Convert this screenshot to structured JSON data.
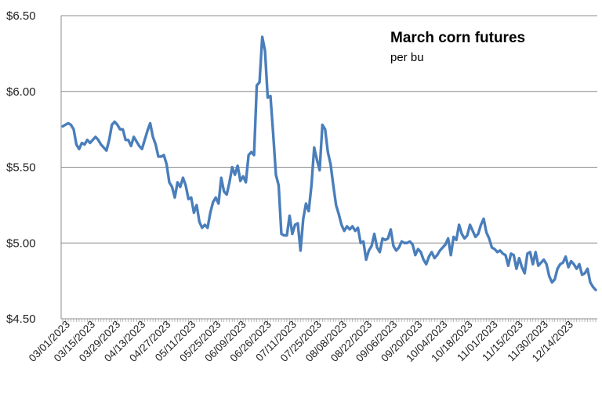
{
  "chart_data": {
    "type": "line",
    "title": "March corn futures",
    "subtitle": "per bu",
    "ylim": [
      4.5,
      6.5
    ],
    "y_ticks": [
      4.5,
      5.0,
      5.5,
      6.0,
      6.5
    ],
    "y_tick_labels": [
      "$4.50",
      "$5.00",
      "$5.50",
      "$6.00",
      "$6.50"
    ],
    "x_tick_labels": [
      "03/01/2023",
      "03/15/2023",
      "03/29/2023",
      "04/13/2023",
      "04/27/2023",
      "05/11/2023",
      "05/25/2023",
      "06/09/2023",
      "06/26/2023",
      "07/11/2023",
      "07/25/2023",
      "08/08/2023",
      "08/22/2023",
      "09/06/2023",
      "09/20/2023",
      "10/04/2023",
      "10/18/2023",
      "11/01/2023",
      "11/15/2023",
      "11/30/2023",
      "12/14/2023"
    ],
    "grid": "horizontal",
    "line_color": "#4a7ebb",
    "series": [
      {
        "values": [
          5.77,
          5.78,
          5.79,
          5.78,
          5.75,
          5.65,
          5.62,
          5.66,
          5.65,
          5.68,
          5.66,
          5.68,
          5.7,
          5.68,
          5.65,
          5.63,
          5.61,
          5.68,
          5.78,
          5.8,
          5.78,
          5.75,
          5.75,
          5.68,
          5.68,
          5.64,
          5.7,
          5.67,
          5.64,
          5.62,
          5.68,
          5.74,
          5.79,
          5.7,
          5.65,
          5.57,
          5.57,
          5.58,
          5.52,
          5.4,
          5.37,
          5.3,
          5.4,
          5.37,
          5.43,
          5.38,
          5.29,
          5.3,
          5.2,
          5.25,
          5.14,
          5.1,
          5.12,
          5.1,
          5.2,
          5.27,
          5.3,
          5.26,
          5.43,
          5.34,
          5.32,
          5.4,
          5.5,
          5.45,
          5.51,
          5.41,
          5.44,
          5.4,
          5.58,
          5.6,
          5.58,
          6.04,
          6.06,
          6.36,
          6.27,
          5.96,
          5.97,
          5.72,
          5.45,
          5.38,
          5.06,
          5.05,
          5.05,
          5.18,
          5.06,
          5.12,
          5.13,
          4.95,
          5.16,
          5.26,
          5.21,
          5.38,
          5.63,
          5.55,
          5.48,
          5.78,
          5.75,
          5.6,
          5.52,
          5.38,
          5.25,
          5.19,
          5.12,
          5.08,
          5.11,
          5.09,
          5.11,
          5.08,
          5.1,
          5.0,
          5.01,
          4.89,
          4.95,
          4.98,
          5.06,
          4.97,
          4.94,
          5.03,
          5.02,
          5.03,
          5.09,
          4.98,
          4.95,
          4.97,
          5.01,
          5.0,
          5.0,
          5.01,
          4.99,
          4.92,
          4.96,
          4.94,
          4.89,
          4.86,
          4.91,
          4.94,
          4.9,
          4.92,
          4.95,
          4.97,
          4.99,
          5.03,
          4.92,
          5.04,
          5.02,
          5.12,
          5.06,
          5.03,
          5.05,
          5.12,
          5.08,
          5.04,
          5.06,
          5.12,
          5.16,
          5.07,
          5.03,
          4.97,
          4.96,
          4.94,
          4.95,
          4.93,
          4.92,
          4.85,
          4.93,
          4.92,
          4.83,
          4.9,
          4.84,
          4.8,
          4.93,
          4.94,
          4.86,
          4.94,
          4.85,
          4.87,
          4.89,
          4.86,
          4.78,
          4.74,
          4.76,
          4.83,
          4.86,
          4.87,
          4.91,
          4.84,
          4.88,
          4.86,
          4.83,
          4.86,
          4.79,
          4.8,
          4.83,
          4.74,
          4.71,
          4.69
        ]
      }
    ]
  }
}
